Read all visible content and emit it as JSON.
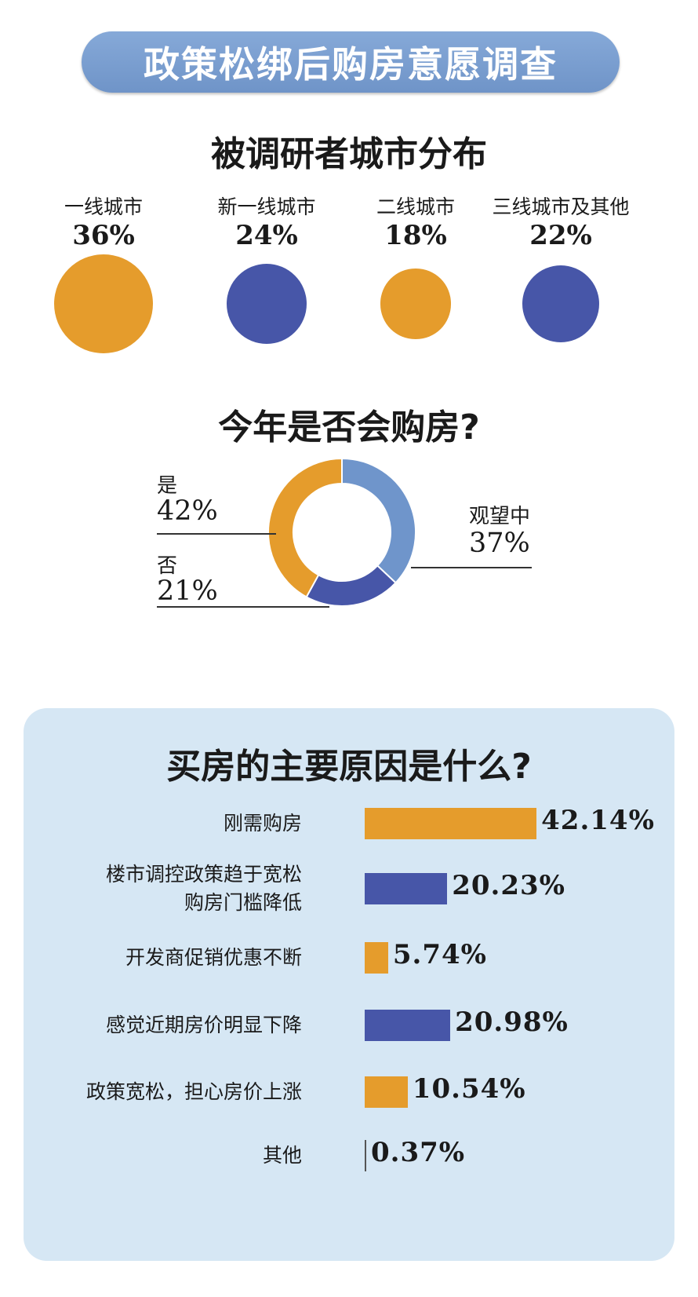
{
  "header": {
    "title": "政策松绑后购房意愿调查"
  },
  "colors": {
    "orange": "#e59c2c",
    "blue": "#4756a8",
    "lightblue": "#6f95cb",
    "panel": "#d6e7f4"
  },
  "chart_data": [
    {
      "type": "bubble",
      "title": "被调研者城市分布",
      "categories": [
        "一线城市",
        "新一线城市",
        "二线城市",
        "三线城市及其他"
      ],
      "values": [
        36,
        24,
        18,
        22
      ],
      "labels": [
        "36%",
        "24%",
        "18%",
        "22%"
      ],
      "unit": "%"
    },
    {
      "type": "pie",
      "title": "今年是否会购房?",
      "categories": [
        "观望中",
        "否",
        "是"
      ],
      "labels": [
        "观望中",
        "否",
        "是"
      ],
      "values": [
        37,
        21,
        42
      ],
      "value_labels": [
        "37%",
        "21%",
        "42%"
      ],
      "unit": "%"
    },
    {
      "type": "bar",
      "title": "买房的主要原因是什么?",
      "categories": [
        "刚需购房",
        "楼市调控政策趋于宽松\n购房门槛降低",
        "开发商促销优惠不断",
        "感觉近期房价明显下降",
        "政策宽松，担心房价上涨",
        "其他"
      ],
      "values": [
        42.14,
        20.23,
        5.74,
        20.98,
        10.54,
        0.37
      ],
      "value_labels": [
        "42.14%",
        "20.23%",
        "5.74%",
        "20.98%",
        "10.54%",
        "0.37%"
      ],
      "unit": "%"
    }
  ]
}
